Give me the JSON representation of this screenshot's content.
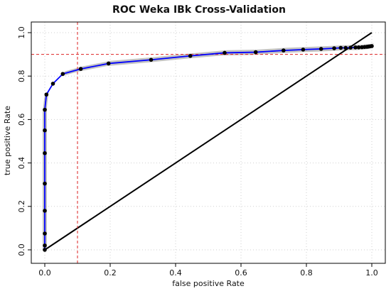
{
  "chart_data": {
    "type": "line",
    "title": "ROC Weka IBk Cross-Validation",
    "xlabel": "false positive Rate",
    "ylabel": "true positive Rate",
    "xlim": [
      0,
      1
    ],
    "ylim": [
      0,
      1
    ],
    "xticks": [
      "0.0",
      "0.2",
      "0.4",
      "0.6",
      "0.8",
      "1.0"
    ],
    "yticks": [
      "0.0",
      "0.2",
      "0.4",
      "0.6",
      "0.8",
      "1.0"
    ],
    "grid": true,
    "series": [
      {
        "color": "#0000ff",
        "points": [
          [
            0.0,
            0.0
          ],
          [
            0.0,
            0.02
          ],
          [
            0.0,
            0.075
          ],
          [
            0.0,
            0.18
          ],
          [
            0.0,
            0.305
          ],
          [
            0.0,
            0.445
          ],
          [
            0.0,
            0.55
          ],
          [
            0.0,
            0.645
          ],
          [
            0.005,
            0.715
          ],
          [
            0.025,
            0.765
          ],
          [
            0.055,
            0.81
          ],
          [
            0.11,
            0.833
          ],
          [
            0.195,
            0.858
          ],
          [
            0.325,
            0.875
          ],
          [
            0.445,
            0.893
          ],
          [
            0.55,
            0.907
          ],
          [
            0.645,
            0.91
          ],
          [
            0.73,
            0.918
          ],
          [
            0.79,
            0.922
          ],
          [
            0.845,
            0.925
          ],
          [
            0.885,
            0.928
          ],
          [
            0.905,
            0.93
          ],
          [
            0.92,
            0.93
          ],
          [
            0.935,
            0.931
          ],
          [
            0.95,
            0.932
          ],
          [
            0.96,
            0.932
          ],
          [
            0.97,
            0.933
          ],
          [
            0.978,
            0.934
          ],
          [
            0.985,
            0.935
          ],
          [
            0.99,
            0.936
          ],
          [
            0.995,
            0.937
          ],
          [
            1.0,
            0.938
          ]
        ]
      }
    ],
    "confidence_band_color": "#999999",
    "reference_diagonal": {
      "from": [
        0,
        0
      ],
      "to": [
        1,
        1
      ],
      "color": "#000000"
    },
    "threshold_lines": {
      "x": 0.1,
      "y": 0.9,
      "color": "#dd2222"
    }
  }
}
